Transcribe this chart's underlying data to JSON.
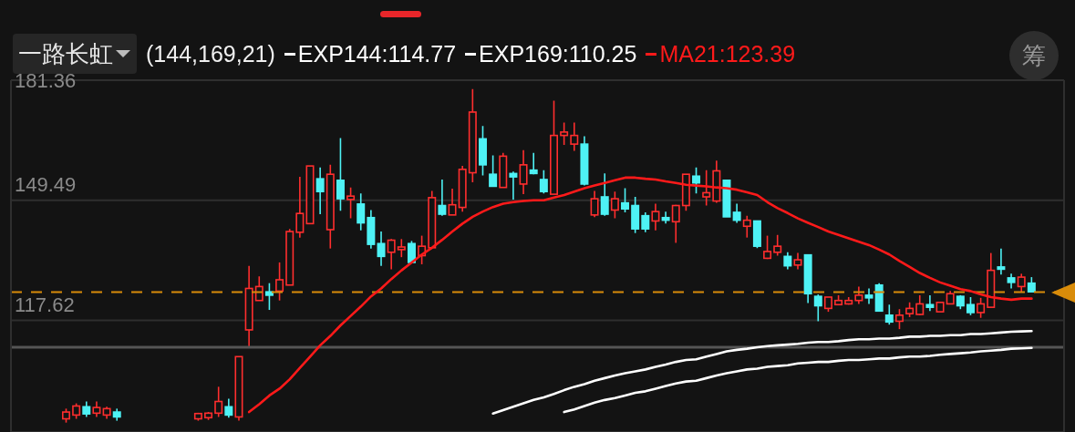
{
  "chart_data": {
    "type": "candlestick",
    "title": "一路长虹",
    "legend_title": "(144,169,21)",
    "legend": "top left",
    "tick_labels": "y",
    "grid": "y",
    "categories": [
      null,
      null,
      null,
      null,
      null,
      null,
      null,
      null,
      null,
      null,
      null,
      null,
      null,
      null,
      null,
      null,
      null,
      null,
      null,
      null,
      null,
      null,
      null,
      null,
      null,
      null,
      null,
      null,
      null,
      null,
      null,
      null,
      null,
      null,
      null,
      null,
      null,
      null,
      null,
      null,
      null,
      null,
      null,
      null,
      null,
      null,
      null,
      null,
      null,
      null,
      null,
      null,
      null,
      null,
      null,
      null,
      null,
      null,
      null,
      null,
      null,
      null,
      null,
      null,
      null,
      null,
      null,
      null,
      null,
      null,
      null,
      null,
      null,
      null,
      null,
      null,
      null,
      null,
      null,
      null,
      null,
      null,
      null,
      null,
      null,
      null,
      null,
      null,
      null,
      null,
      null,
      null,
      null,
      null,
      null,
      null
    ],
    "ohlc": [
      [
        91.5,
        94.2,
        90.5,
        93.3
      ],
      [
        92.5,
        95.6,
        91.5,
        94.9
      ],
      [
        94.7,
        96.1,
        92,
        92.8
      ],
      [
        93,
        96.1,
        92,
        94.5
      ],
      [
        92.5,
        94.7,
        91.5,
        94.2
      ],
      [
        93.3,
        94.2,
        91,
        92
      ],
      null,
      null,
      null,
      null,
      null,
      null,
      null,
      [
        91.5,
        93.1,
        91,
        92.9
      ],
      [
        91.8,
        93.3,
        91.2,
        93.0
      ],
      [
        93.0,
        100.0,
        92.0,
        96.1
      ],
      [
        94.7,
        96.8,
        91.8,
        92.5
      ],
      [
        92.0,
        108.0,
        91.0,
        108.0
      ],
      [
        115.1,
        132.1,
        110.7,
        126.1
      ],
      [
        122.9,
        129.3,
        122.9,
        126.6
      ],
      [
        125.2,
        127.5,
        120.4,
        124.3
      ],
      [
        125.4,
        133.0,
        122.9,
        128.4
      ],
      [
        127.0,
        141.9,
        127.0,
        141.2
      ],
      [
        141.0,
        155.7,
        139.6,
        146.0
      ],
      [
        143.3,
        158.6,
        143.3,
        158.6
      ],
      [
        155.2,
        158.2,
        145.8,
        151.8
      ],
      [
        141.7,
        158.9,
        136.7,
        156.4
      ],
      [
        154.8,
        166.0,
        146.7,
        149.9
      ],
      [
        149.7,
        152.9,
        144.7,
        150.6
      ],
      [
        148.5,
        151.3,
        141.5,
        143.5
      ],
      [
        144.9,
        146.9,
        136.7,
        137.8
      ],
      [
        138.0,
        141.2,
        132.1,
        134.6
      ],
      [
        135.7,
        139.2,
        131.2,
        138.9
      ],
      [
        136.4,
        139.2,
        134.4,
        137.1
      ],
      [
        138.0,
        138.7,
        133.0,
        133.0
      ],
      [
        134.8,
        140.1,
        132.5,
        137.3
      ],
      [
        136.9,
        152.0,
        136.9,
        150.2
      ],
      [
        148.1,
        155.0,
        145.4,
        145.8
      ],
      [
        145.6,
        152.6,
        145.6,
        148.3
      ],
      [
        147.6,
        158.6,
        146.5,
        157.7
      ],
      [
        156.8,
        179.0,
        154.3,
        172.9
      ],
      [
        165.8,
        169.2,
        156.1,
        158.9
      ],
      [
        156.4,
        161.4,
        153.2,
        153.2
      ],
      [
        152.9,
        162.1,
        152.9,
        161.2
      ],
      [
        156.6,
        157.1,
        149.7,
        155.7
      ],
      [
        153.8,
        162.8,
        151.1,
        158.9
      ],
      [
        157.5,
        162.1,
        156.4,
        156.6
      ],
      [
        155.0,
        157.5,
        151.3,
        151.8
      ],
      [
        151.1,
        175.9,
        151.1,
        166.7
      ],
      [
        166.7,
        170.1,
        164.2,
        167.6
      ],
      [
        164.4,
        170.1,
        162.6,
        166.7
      ],
      [
        164.4,
        166.5,
        153.4,
        153.8
      ],
      [
        145.6,
        152.0,
        145.0,
        149.9
      ],
      [
        150.4,
        156.6,
        145.4,
        145.8
      ],
      [
        146.9,
        151.8,
        144.7,
        149.9
      ],
      [
        148.8,
        152.7,
        146.3,
        147.2
      ],
      [
        148.1,
        150.4,
        140.8,
        141.9
      ],
      [
        145.4,
        146.3,
        141.0,
        141.9
      ],
      [
        144.0,
        148.6,
        141.5,
        146.5
      ],
      [
        144.9,
        146.5,
        143.3,
        144.2
      ],
      [
        143.8,
        148.3,
        138.2,
        148.1
      ],
      [
        148.1,
        156.4,
        146.7,
        156.4
      ],
      [
        155.9,
        158.2,
        151.3,
        154.1
      ],
      [
        150.4,
        157.5,
        148.1,
        151.5
      ],
      [
        149.3,
        160.0,
        148.8,
        157.3
      ],
      [
        154.8,
        155.0,
        145.1,
        145.1
      ],
      [
        146.3,
        148.6,
        143.5,
        144.2
      ],
      [
        142.6,
        145.4,
        139.6,
        144.2
      ],
      [
        144.0,
        144.0,
        136.8,
        137.3
      ],
      [
        134.1,
        140.1,
        133.9,
        135.9
      ],
      [
        135.7,
        140.3,
        134.8,
        137.3
      ],
      [
        134.6,
        135.7,
        131.2,
        132.1
      ],
      [
        132.3,
        135.5,
        131.2,
        133.7
      ],
      [
        135.0,
        135.0,
        122.2,
        124.7
      ],
      [
        124.0,
        124.5,
        117.4,
        121.5
      ],
      [
        120.8,
        123.8,
        119.9,
        123.8
      ],
      [
        121.8,
        124.3,
        121.8,
        122.9
      ],
      [
        122.0,
        123.8,
        121.8,
        122.9
      ],
      [
        122.9,
        126.6,
        122.0,
        124.3
      ],
      [
        124.3,
        126.1,
        122.0,
        123.6
      ],
      [
        127.0,
        127.5,
        120.1,
        120.1
      ],
      [
        119.0,
        121.8,
        116.5,
        117.2
      ],
      [
        117.4,
        120.6,
        115.3,
        119.0
      ],
      [
        119.4,
        122.4,
        118.5,
        120.8
      ],
      [
        119.2,
        124.3,
        119.0,
        122.0
      ],
      [
        121.8,
        124.3,
        120.1,
        121.1
      ],
      [
        119.9,
        122.4,
        119.9,
        122.4
      ],
      [
        122.0,
        125.4,
        122.0,
        124.7
      ],
      [
        124.0,
        124.3,
        120.6,
        121.5
      ],
      [
        121.8,
        123.8,
        119.0,
        119.7
      ],
      [
        119.7,
        123.6,
        118.3,
        122.0
      ],
      [
        121.1,
        135.5,
        121.1,
        130.9
      ],
      [
        131.8,
        136.7,
        129.8,
        131.2
      ],
      [
        128.9,
        130.0,
        126.1,
        127.7
      ],
      [
        126.6,
        130.0,
        125.2,
        129.1
      ],
      [
        127.5,
        129.1,
        125.2,
        125.2
      ]
    ],
    "colors": [
      "#ff2e2e",
      "#ff2e2e",
      "#4ef2f5",
      "#ff2e2e",
      "#ff2e2e",
      "#4ef2f5",
      null,
      null,
      null,
      null,
      null,
      null,
      null,
      "#ff2e2e",
      "#ff2e2e",
      "#ff2e2e",
      "#4ef2f5",
      "#ff2e2e",
      "#ff2e2e",
      "#ff2e2e",
      "#4ef2f5",
      "#ff2e2e",
      "#ff2e2e",
      "#ff2e2e",
      "#ff2e2e",
      "#4ef2f5",
      "#ff2e2e",
      "#4ef2f5",
      "#ff2e2e",
      "#4ef2f5",
      "#4ef2f5",
      "#4ef2f5",
      "#ff2e2e",
      "#ff2e2e",
      "#4ef2f5",
      "#ff2e2e",
      "#ff2e2e",
      "#4ef2f5",
      "#ff2e2e",
      "#ff2e2e",
      "#ff2e2e",
      "#4ef2f5",
      "#4ef2f5",
      "#ff2e2e",
      "#4ef2f5",
      "#ff2e2e",
      "#4ef2f5",
      "#4ef2f5",
      "#ff2e2e",
      "#ff2e2e",
      "#ff2e2e",
      "#4ef2f5",
      "#ff2e2e",
      "#4ef2f5",
      "#ff2e2e",
      "#4ef2f5",
      "#4ef2f5",
      "#4ef2f5",
      "#ff2e2e",
      "#4ef2f5",
      "#ff2e2e",
      "#ff2e2e",
      "#4ef2f5",
      "#ff2e2e",
      "#ff2e2e",
      "#4ef2f5",
      "#4ef2f5",
      "#ff2e2e",
      "#4ef2f5",
      "#ff2e2e",
      "#ff2e2e",
      "#4ef2f5",
      "#ff2e2e",
      "#4ef2f5",
      "#4ef2f5",
      "#ff2e2e",
      "#ff2e2e",
      "#ff2e2e",
      "#ff2e2e",
      "#4ef2f5",
      "#4ef2f5",
      "#4ef2f5",
      "#ff2e2e",
      "#ff2e2e",
      "#ff2e2e",
      "#4ef2f5",
      "#ff2e2e",
      "#ff2e2e",
      "#4ef2f5",
      "#4ef2f5",
      "#ff2e2e",
      "#ff2e2e",
      "#4ef2f5",
      "#4ef2f5",
      "#ff2e2e",
      "#4ef2f5"
    ],
    "series": [
      {
        "name": "EXP144:114.77",
        "type": "line",
        "color": "#ffffff",
        "values": [
          null,
          null,
          null,
          null,
          null,
          null,
          null,
          null,
          null,
          null,
          null,
          null,
          null,
          null,
          null,
          null,
          null,
          null,
          null,
          null,
          null,
          null,
          null,
          null,
          null,
          null,
          null,
          null,
          null,
          null,
          null,
          null,
          null,
          null,
          null,
          null,
          null,
          null,
          null,
          null,
          null,
          null,
          92.9,
          93.8,
          94.7,
          95.6,
          96.5,
          97.2,
          98.1,
          99.1,
          100.0,
          100.7,
          101.6,
          102.3,
          103.0,
          103.6,
          104.1,
          104.6,
          105.3,
          105.9,
          106.6,
          107.1,
          107.3,
          108.0,
          108.7,
          109.4,
          109.8,
          110.1,
          110.5,
          110.8,
          111.0,
          111.2,
          111.4,
          111.7,
          111.9,
          111.9,
          112.1,
          112.4,
          112.6,
          112.6,
          112.8,
          112.8,
          113.0,
          113.3,
          113.3,
          113.5,
          113.5,
          113.7,
          113.7,
          114.0,
          114.0,
          114.2,
          114.4,
          114.6,
          114.7,
          114.8
        ]
      },
      {
        "name": "EXP169:110.25",
        "type": "line",
        "color": "#ffffff",
        "values": [
          null,
          null,
          null,
          null,
          null,
          null,
          null,
          null,
          null,
          null,
          null,
          null,
          null,
          null,
          null,
          null,
          null,
          null,
          null,
          null,
          null,
          null,
          null,
          null,
          null,
          null,
          null,
          null,
          null,
          null,
          null,
          null,
          null,
          null,
          null,
          null,
          null,
          null,
          null,
          null,
          null,
          null,
          null,
          null,
          null,
          null,
          null,
          null,
          null,
          93.3,
          94.0,
          94.9,
          95.8,
          96.5,
          97.0,
          97.7,
          98.4,
          98.8,
          99.5,
          100.2,
          100.9,
          101.4,
          101.6,
          102.3,
          103.0,
          103.6,
          104.1,
          104.6,
          104.8,
          105.3,
          105.5,
          105.7,
          106.2,
          106.4,
          106.6,
          106.6,
          106.9,
          107.1,
          107.1,
          107.3,
          107.5,
          107.5,
          107.8,
          108.0,
          108.0,
          108.2,
          108.5,
          108.7,
          108.9,
          109.1,
          109.4,
          109.6,
          109.8,
          110.1,
          110.2,
          110.3
        ]
      },
      {
        "name": "MA21:123.39",
        "type": "line",
        "color": "#ff1a1a",
        "values": [
          null,
          null,
          null,
          null,
          null,
          null,
          null,
          null,
          null,
          null,
          null,
          null,
          null,
          null,
          null,
          null,
          null,
          null,
          93.3,
          95.4,
          97.7,
          99.5,
          102.0,
          105.0,
          108.0,
          111.0,
          113.5,
          116.3,
          118.8,
          121.3,
          124.0,
          126.1,
          128.6,
          130.9,
          133.0,
          135.1,
          136.9,
          139.0,
          141.2,
          143.3,
          145.1,
          146.5,
          147.7,
          148.6,
          149.0,
          149.3,
          149.5,
          149.5,
          150.2,
          150.9,
          151.8,
          152.7,
          153.4,
          154.1,
          154.8,
          155.5,
          155.5,
          155.2,
          155.0,
          154.5,
          154.1,
          153.6,
          153.4,
          153.2,
          152.9,
          152.7,
          152.3,
          151.6,
          150.9,
          149.0,
          147.4,
          146.1,
          144.7,
          143.5,
          142.4,
          141.2,
          140.3,
          139.4,
          138.5,
          137.6,
          136.4,
          135.1,
          133.4,
          131.8,
          130.2,
          128.9,
          127.7,
          126.8,
          125.9,
          125.4,
          124.5,
          123.8,
          123.4,
          123.1,
          123.4,
          123.4
        ]
      }
    ],
    "ylim": [
      88,
      181.36
    ],
    "yticks": [
      117.62,
      149.49,
      181.36
    ],
    "ref_lines": [
      {
        "axis": "y",
        "value": 125.12,
        "color": "#d98c0a",
        "line_style": "dashed"
      },
      {
        "axis": "y",
        "value": 110.5,
        "color": "#555555",
        "line_style": "solid"
      }
    ],
    "annotations": [
      "筹"
    ]
  }
}
